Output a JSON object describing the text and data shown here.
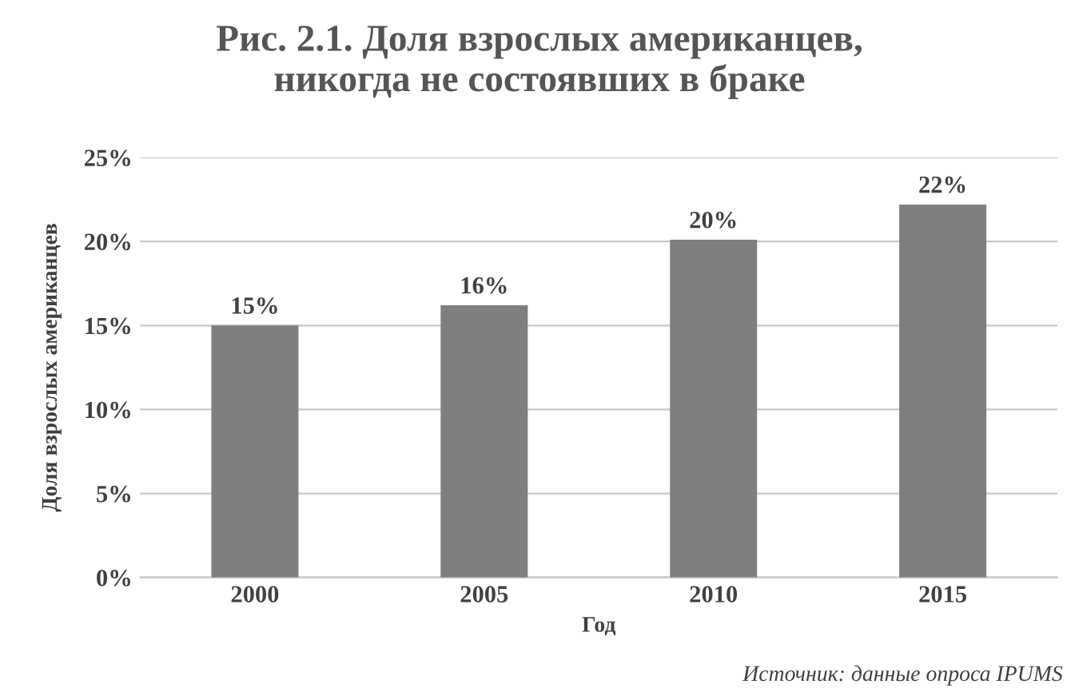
{
  "chart_data": {
    "type": "bar",
    "title": "Рис. 2.1. Доля взрослых американцев,\nникогда не состоявших в браке",
    "xlabel": "Год",
    "ylabel": "Доля взрослых американцев",
    "categories": [
      "2000",
      "2005",
      "2010",
      "2015"
    ],
    "values": [
      15.0,
      16.2,
      20.1,
      22.2
    ],
    "color": "#7f7f7f",
    "value_labels": [
      "15%",
      "16%",
      "20%",
      "22%"
    ],
    "ylim": [
      0,
      25
    ],
    "yticks": [
      {
        "value": 0,
        "label": "0%"
      },
      {
        "value": 5,
        "label": "5%"
      },
      {
        "value": 10,
        "label": "10%"
      },
      {
        "value": 15,
        "label": "15%"
      },
      {
        "value": 20,
        "label": "20%"
      },
      {
        "value": 25,
        "label": "25%"
      }
    ],
    "grid": "y",
    "legend": false,
    "annotations": [
      "Источник: данные опроса IPUMS"
    ]
  }
}
